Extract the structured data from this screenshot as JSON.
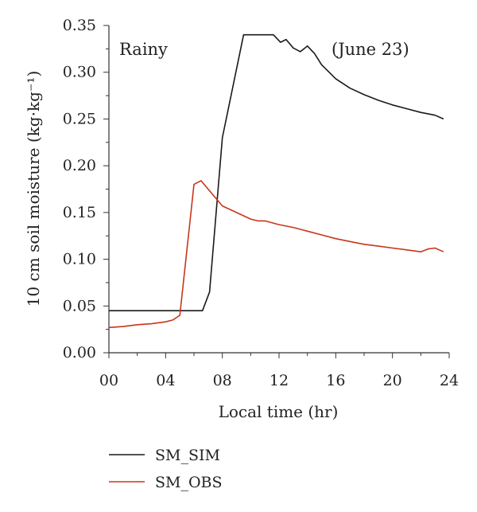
{
  "chart_data": {
    "type": "line",
    "xlabel": "Local time (hr)",
    "ylabel": "10 cm soil moisture (kg·kg⁻¹)",
    "xlim": [
      0,
      24
    ],
    "ylim": [
      0,
      0.35
    ],
    "x_ticks": [
      0,
      4,
      8,
      12,
      16,
      20,
      24
    ],
    "x_tick_labels": [
      "00",
      "04",
      "08",
      "12",
      "16",
      "20",
      "24"
    ],
    "y_ticks": [
      0,
      0.05,
      0.1,
      0.15,
      0.2,
      0.25,
      0.3,
      0.35
    ],
    "y_tick_labels": [
      "0.00",
      "0.05",
      "0.10",
      "0.15",
      "0.20",
      "0.25",
      "0.30",
      "0.35"
    ],
    "grid": false,
    "legend_position": "bottom-left, below plot",
    "annotations": [
      "Rainy",
      "(June 23)"
    ],
    "series": [
      {
        "name": "SM_SIM",
        "color": "#1a1a1a",
        "points": [
          [
            0,
            0.045
          ],
          [
            1,
            0.045
          ],
          [
            2,
            0.045
          ],
          [
            3,
            0.045
          ],
          [
            4,
            0.045
          ],
          [
            5,
            0.045
          ],
          [
            6,
            0.045
          ],
          [
            6.6,
            0.045
          ],
          [
            7.1,
            0.065
          ],
          [
            8,
            0.23
          ],
          [
            9.5,
            0.34
          ],
          [
            10.5,
            0.34
          ],
          [
            11.6,
            0.34
          ],
          [
            12.1,
            0.332
          ],
          [
            12.5,
            0.335
          ],
          [
            13,
            0.326
          ],
          [
            13.5,
            0.322
          ],
          [
            14,
            0.328
          ],
          [
            14.5,
            0.32
          ],
          [
            15,
            0.308
          ],
          [
            16,
            0.293
          ],
          [
            17,
            0.283
          ],
          [
            18,
            0.276
          ],
          [
            19,
            0.27
          ],
          [
            20,
            0.265
          ],
          [
            21,
            0.261
          ],
          [
            22,
            0.257
          ],
          [
            23,
            0.254
          ],
          [
            23.6,
            0.25
          ]
        ]
      },
      {
        "name": "SM_OBS",
        "color": "#c8361a",
        "points": [
          [
            0,
            0.027
          ],
          [
            1,
            0.028
          ],
          [
            2,
            0.03
          ],
          [
            3,
            0.031
          ],
          [
            4,
            0.033
          ],
          [
            4.5,
            0.035
          ],
          [
            5,
            0.04
          ],
          [
            6,
            0.18
          ],
          [
            6.5,
            0.184
          ],
          [
            7,
            0.175
          ],
          [
            7.5,
            0.166
          ],
          [
            8,
            0.157
          ],
          [
            9,
            0.15
          ],
          [
            10,
            0.143
          ],
          [
            10.5,
            0.141
          ],
          [
            11,
            0.141
          ],
          [
            12,
            0.137
          ],
          [
            13,
            0.134
          ],
          [
            14,
            0.13
          ],
          [
            15,
            0.126
          ],
          [
            16,
            0.122
          ],
          [
            17,
            0.119
          ],
          [
            18,
            0.116
          ],
          [
            19,
            0.114
          ],
          [
            20,
            0.112
          ],
          [
            21,
            0.11
          ],
          [
            22,
            0.108
          ],
          [
            22.5,
            0.111
          ],
          [
            23,
            0.112
          ],
          [
            23.3,
            0.11
          ],
          [
            23.6,
            0.108
          ]
        ]
      }
    ]
  }
}
